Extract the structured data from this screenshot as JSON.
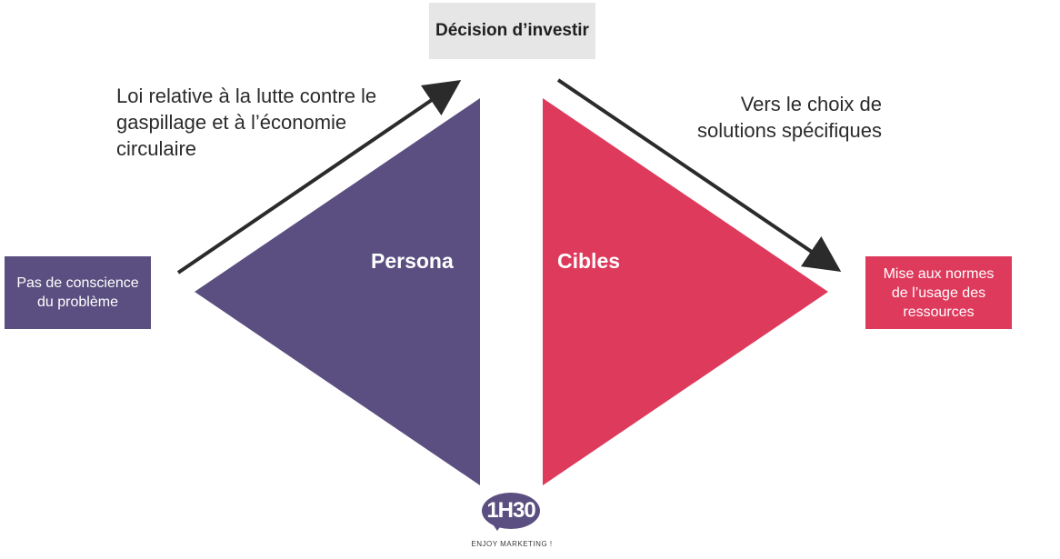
{
  "diagram": {
    "decision_box": "Décision d’investir",
    "start_box": "Pas de conscience du problème",
    "end_box": "Mise aux normes de l’usage des ressources",
    "note_left": "Loi relative à la lutte contre le gaspillage et à l’économie circulaire",
    "note_right": "Vers le choix de solutions spécifiques",
    "triangle_left_label": "Persona",
    "triangle_right_label": "Cibles"
  },
  "logo": {
    "mark": "1H30",
    "tagline": "ENJOY MARKETING !"
  },
  "colors": {
    "purple": "#5a4f80",
    "red": "#de3a5c",
    "grey_box": "#e6e6e6",
    "arrow": "#2b2b2b"
  }
}
